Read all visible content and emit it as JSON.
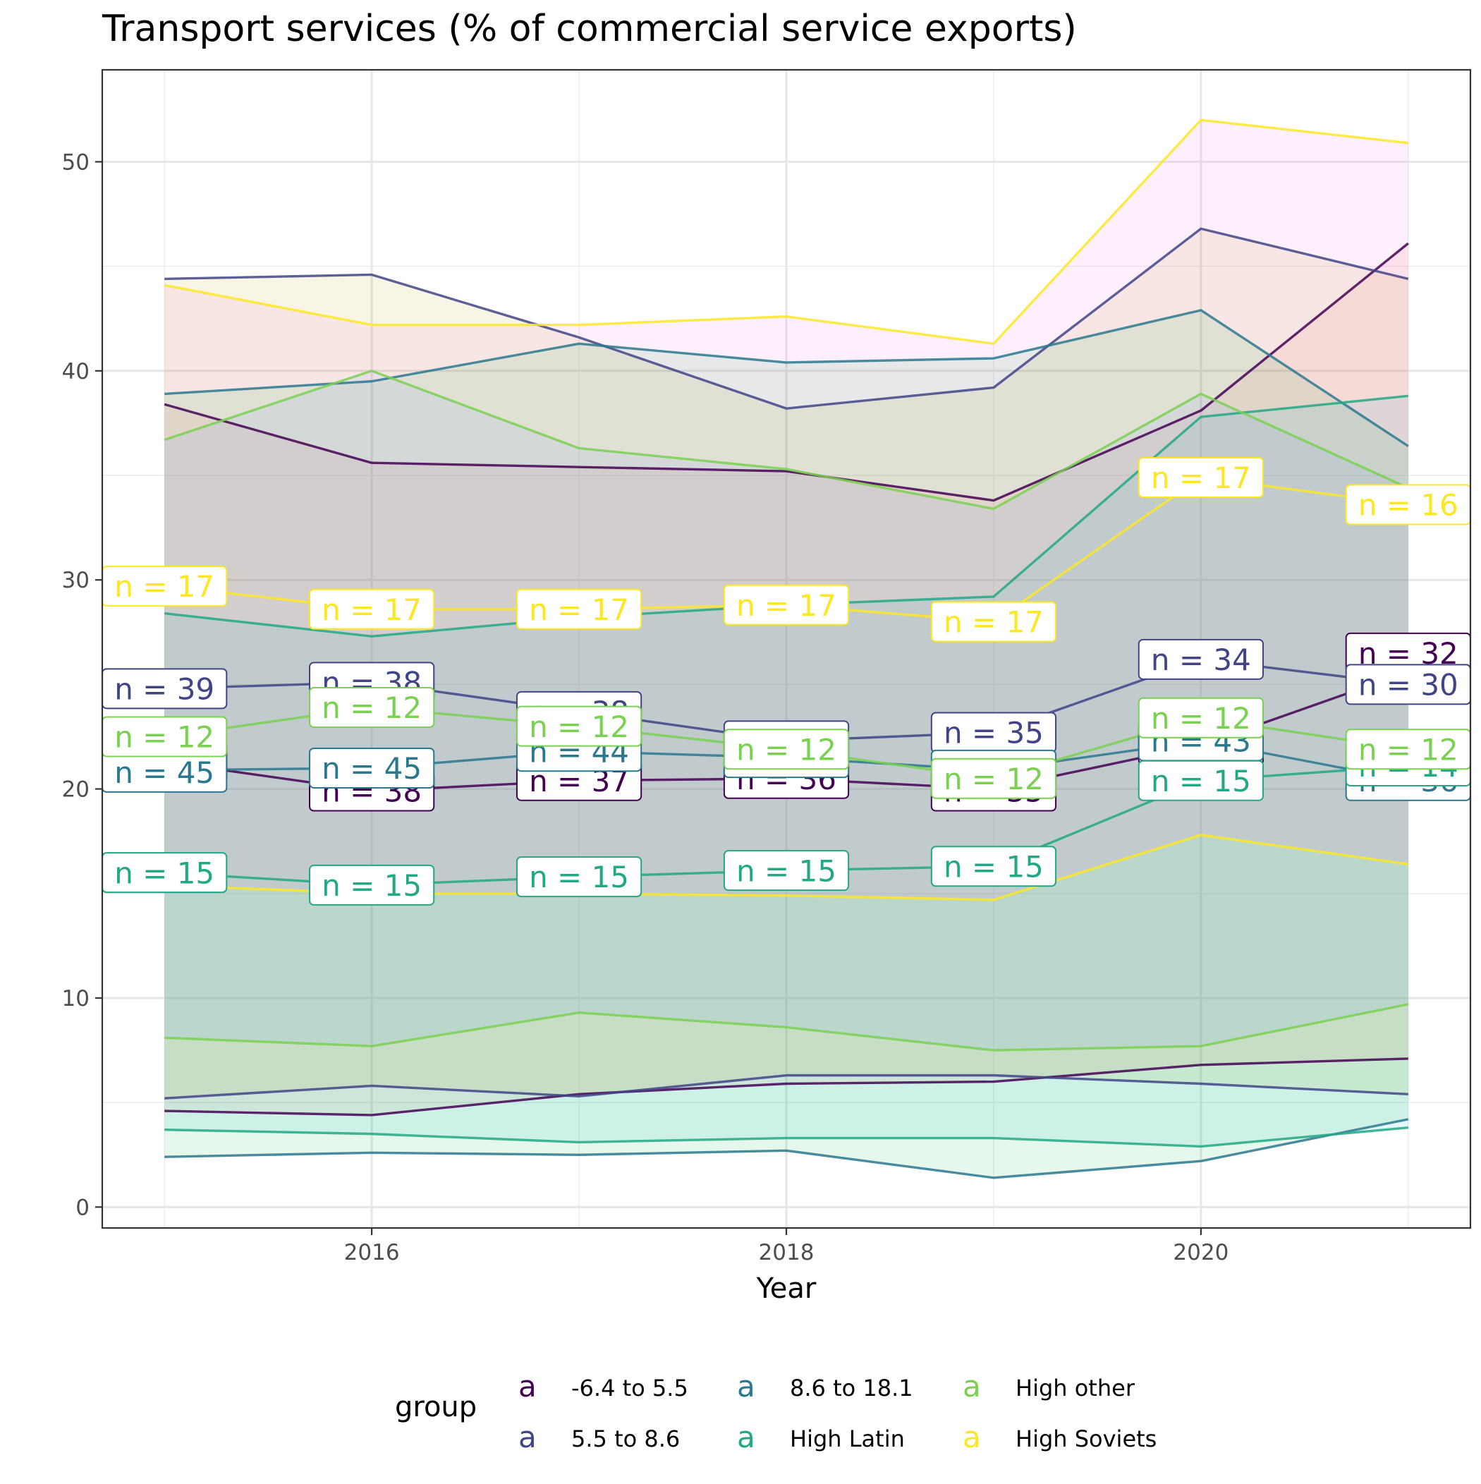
{
  "chart_data": {
    "type": "line",
    "title": "Transport services (% of commercial service exports)",
    "xlabel": "Year",
    "ylabel": "",
    "xlim": [
      2014.7,
      2021.3
    ],
    "ylim": [
      -1,
      54.4
    ],
    "x_ticks": [
      2016,
      2018,
      2020
    ],
    "x_tick_labels": [
      "2016",
      "2018",
      "2020"
    ],
    "y_ticks": [
      0,
      10,
      20,
      30,
      40,
      50
    ],
    "y_tick_labels": [
      "0",
      "10",
      "20",
      "30",
      "40",
      "50"
    ],
    "grid": true,
    "legend": {
      "title": "group",
      "position": "bottom",
      "glyph": "a",
      "entries": [
        "-6.4 to 5.5",
        "5.5 to 8.6",
        "8.6 to 18.1",
        "High Latin",
        "High other",
        "High Soviets"
      ]
    },
    "x": [
      2015,
      2016,
      2017,
      2018,
      2019,
      2020,
      2021
    ],
    "series": [
      {
        "name": "-6.4 to 5.5",
        "color": "#440154",
        "ribbon_color": "#F8766D",
        "upper": [
          38.4,
          35.6,
          35.4,
          35.2,
          33.8,
          38.1,
          46.1
        ],
        "median": [
          21.3,
          19.9,
          20.4,
          20.5,
          20.0,
          22.1,
          25.6
        ],
        "lower": [
          4.6,
          4.4,
          5.4,
          5.9,
          6.0,
          6.8,
          7.1
        ],
        "n_labels": [
          "n = 39",
          "n = 38",
          "n = 37",
          "n = 36",
          "n = 35",
          "n = 35",
          "n = 32"
        ],
        "label_y": [
          21.3,
          19.9,
          20.4,
          20.5,
          19.9,
          22.1,
          26.5
        ]
      },
      {
        "name": "5.5 to 8.6",
        "color": "#414487",
        "ribbon_color": "#B79F00",
        "upper": [
          44.4,
          44.6,
          41.6,
          38.2,
          39.2,
          46.8,
          44.4
        ],
        "median": [
          24.8,
          25.1,
          23.7,
          22.3,
          22.7,
          26.2,
          25.0
        ],
        "lower": [
          5.2,
          5.8,
          5.3,
          6.3,
          6.3,
          5.9,
          5.4
        ],
        "n_labels": [
          "n = 39",
          "n = 38",
          "n = 38",
          "n = 36",
          "n = 35",
          "n = 34",
          "n = 30"
        ],
        "label_y": [
          24.8,
          25.1,
          23.7,
          22.3,
          22.7,
          26.2,
          25.0
        ]
      },
      {
        "name": "8.6 to 18.1",
        "color": "#2A788E",
        "ribbon_color": "#00BA38",
        "upper": [
          38.9,
          39.5,
          41.3,
          40.4,
          40.6,
          42.9,
          36.4
        ],
        "median": [
          20.9,
          21.0,
          21.8,
          21.5,
          20.9,
          22.3,
          20.4
        ],
        "lower": [
          2.4,
          2.6,
          2.5,
          2.7,
          1.4,
          2.2,
          4.2
        ],
        "n_labels": [
          "n = 45",
          "n = 45",
          "n = 44",
          "n = 43",
          "n = 42",
          "n = 43",
          "n = 36"
        ],
        "label_y": [
          20.8,
          21.0,
          21.8,
          21.5,
          20.9,
          22.3,
          20.4
        ]
      },
      {
        "name": "High Latin",
        "color": "#22A884",
        "ribbon_color": "#00BFC4",
        "upper": [
          28.4,
          27.3,
          28.2,
          28.8,
          29.2,
          37.8,
          38.8
        ],
        "median": [
          16.0,
          15.4,
          15.8,
          16.1,
          16.3,
          20.4,
          21.1
        ],
        "lower": [
          3.7,
          3.5,
          3.1,
          3.3,
          3.3,
          2.9,
          3.8
        ],
        "n_labels": [
          "n = 15",
          "n = 15",
          "n = 15",
          "n = 15",
          "n = 15",
          "n = 15",
          "n = 14"
        ],
        "label_y": [
          16.0,
          15.4,
          15.8,
          16.1,
          16.3,
          20.4,
          21.1
        ]
      },
      {
        "name": "High other",
        "color": "#7AD151",
        "ribbon_color": "#619CFF",
        "upper": [
          36.7,
          40.0,
          36.3,
          35.3,
          33.4,
          38.9,
          34.4
        ],
        "median": [
          22.5,
          23.9,
          23.0,
          21.9,
          20.5,
          23.4,
          21.9
        ],
        "lower": [
          8.1,
          7.7,
          9.3,
          8.6,
          7.5,
          7.7,
          9.7
        ],
        "n_labels": [
          "n = 12",
          "n = 12",
          "n = 12",
          "n = 12",
          "n = 12",
          "n = 12",
          "n = 12"
        ],
        "label_y": [
          22.5,
          23.9,
          23.0,
          21.9,
          20.5,
          23.4,
          21.9
        ]
      },
      {
        "name": "High Soviets",
        "color": "#FDE725",
        "ribbon_color": "#F564E3",
        "upper": [
          44.1,
          42.2,
          42.2,
          42.6,
          41.3,
          52.0,
          50.9
        ],
        "median": [
          29.7,
          28.6,
          28.6,
          28.8,
          28.0,
          34.9,
          33.6
        ],
        "lower": [
          15.4,
          15.0,
          15.0,
          14.9,
          14.7,
          17.8,
          16.4
        ],
        "n_labels": [
          "n = 17",
          "n = 17",
          "n = 17",
          "n = 17",
          "n = 17",
          "n = 17",
          "n = 16"
        ],
        "label_y": [
          29.7,
          28.6,
          28.6,
          28.8,
          28.0,
          34.9,
          33.6
        ]
      }
    ]
  }
}
